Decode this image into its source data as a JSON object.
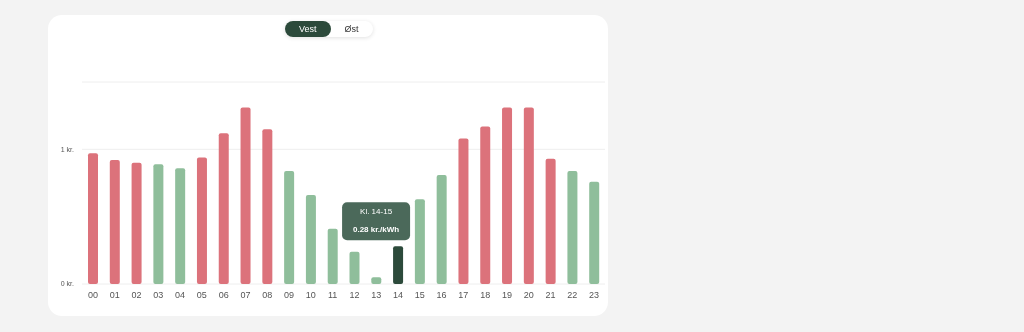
{
  "chart_data": {
    "type": "bar",
    "categories": [
      "00",
      "01",
      "02",
      "03",
      "04",
      "05",
      "06",
      "07",
      "08",
      "09",
      "10",
      "11",
      "12",
      "13",
      "14",
      "15",
      "16",
      "17",
      "18",
      "19",
      "20",
      "21",
      "22",
      "23"
    ],
    "values": [
      0.97,
      0.92,
      0.9,
      0.89,
      0.86,
      0.94,
      1.12,
      1.31,
      1.15,
      0.84,
      0.66,
      0.41,
      0.24,
      0.05,
      0.28,
      0.63,
      0.81,
      1.08,
      1.17,
      1.31,
      1.31,
      0.93,
      0.84,
      0.76
    ],
    "colors": [
      "#dc727b",
      "#dc727b",
      "#dc727b",
      "#8fbe9b",
      "#8fbe9b",
      "#dc727b",
      "#dc727b",
      "#dc727b",
      "#dc727b",
      "#8fbe9b",
      "#8fbe9b",
      "#8fbe9b",
      "#8fbe9b",
      "#8fbe9b",
      "#2c4a3b",
      "#8fbe9b",
      "#8fbe9b",
      "#dc727b",
      "#dc727b",
      "#dc727b",
      "#dc727b",
      "#dc727b",
      "#8fbe9b",
      "#8fbe9b"
    ],
    "ylim": [
      0,
      1.5
    ],
    "yticks": [
      {
        "value": 0,
        "label": "0 kr."
      },
      {
        "value": 1,
        "label": "1 kr."
      }
    ],
    "grid": "y",
    "legend": false,
    "annotations": [
      "Vest",
      "Øst",
      {
        "text": "0.28 kr./kWh",
        "x": "14",
        "y": 0.28
      },
      "Kl. 14-15"
    ]
  }
}
